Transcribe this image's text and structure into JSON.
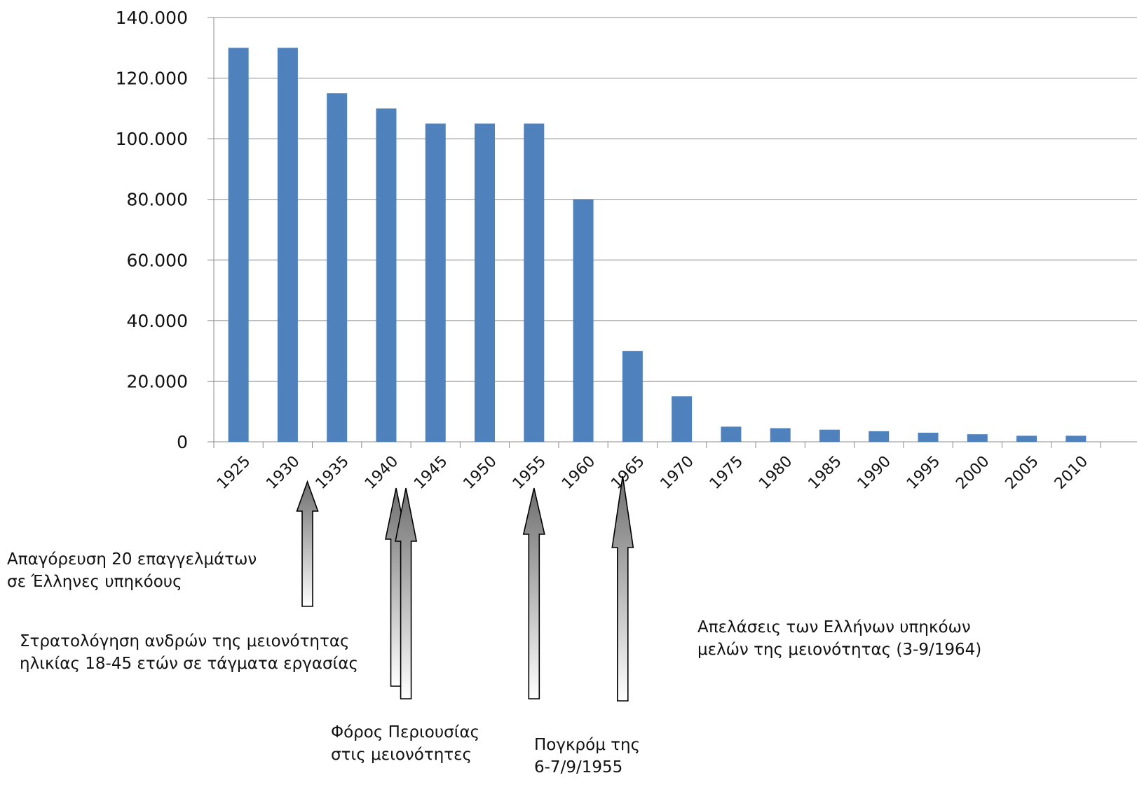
{
  "chart_data": {
    "type": "bar",
    "title": "",
    "xlabel": "",
    "ylabel": "",
    "categories": [
      "1925",
      "1930",
      "1935",
      "1940",
      "1945",
      "1950",
      "1955",
      "1960",
      "1965",
      "1970",
      "1975",
      "1980",
      "1985",
      "1990",
      "1995",
      "2000",
      "2005",
      "2010"
    ],
    "values": [
      130000,
      130000,
      115000,
      110000,
      105000,
      105000,
      105000,
      80000,
      30000,
      15000,
      5000,
      4500,
      4000,
      3500,
      3000,
      2500,
      2000,
      2000
    ],
    "ylim": [
      0,
      140000
    ],
    "yticks": [
      0,
      20000,
      40000,
      60000,
      80000,
      100000,
      120000,
      140000
    ],
    "ytick_labels": [
      "0",
      "20.000",
      "40.000",
      "60.000",
      "80.000",
      "100.000",
      "120.000",
      "140.000"
    ],
    "grid": true,
    "legend": "none",
    "bar_color": "#4f81bd",
    "annotations": [
      {
        "lines": [
          "Απαγόρευση 20 επαγγελμάτων",
          "σε Έλληνες  υπηκόους"
        ],
        "points_to_year": 1932
      },
      {
        "lines": [
          "Στρατολόγηση ανδρών της μειονότητας",
          "ηλικίας 18-45 ετών σε τάγματα εργασίας"
        ],
        "points_to_year": 1941
      },
      {
        "lines": [
          "Φόρος Περιουσίας",
          "στις μειονότητες"
        ],
        "points_to_year": 1942
      },
      {
        "lines": [
          "Πογκρόμ της",
          "6-7/9/1955"
        ],
        "points_to_year": 1955
      },
      {
        "lines": [
          "Απελάσεις των Ελλήνων υπηκόων",
          "μελών της μειονότητας (3-9/1964)"
        ],
        "points_to_year": 1964
      }
    ]
  }
}
